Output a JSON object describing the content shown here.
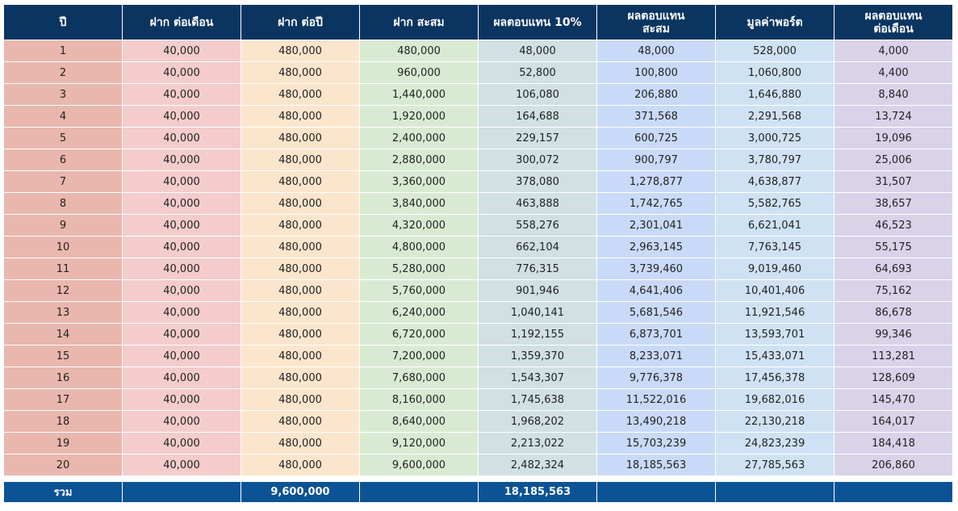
{
  "headers": [
    [
      "ปี"
    ],
    [
      "ฝาก ต่อเดือน"
    ],
    [
      "ฝาก ต่อปี"
    ],
    [
      "ฝาก สะสม"
    ],
    [
      "ผลตอบแทน 10%"
    ],
    [
      "ผลตอบแทน",
      "สะสม"
    ],
    [
      "มูลค่าพอร์ต"
    ],
    [
      "ผลตอบแทน",
      "ต่อเดือน"
    ]
  ],
  "rows": [
    [
      "1",
      "40,000",
      "480,000",
      "480,000",
      "48,000",
      "48,000",
      "528,000",
      "4,000"
    ],
    [
      "2",
      "40,000",
      "480,000",
      "960,000",
      "52,800",
      "100,800",
      "1,060,800",
      "4,400"
    ],
    [
      "3",
      "40,000",
      "480,000",
      "1,440,000",
      "106,080",
      "206,880",
      "1,646,880",
      "8,840"
    ],
    [
      "4",
      "40,000",
      "480,000",
      "1,920,000",
      "164,688",
      "371,568",
      "2,291,568",
      "13,724"
    ],
    [
      "5",
      "40,000",
      "480,000",
      "2,400,000",
      "229,157",
      "600,725",
      "3,000,725",
      "19,096"
    ],
    [
      "6",
      "40,000",
      "480,000",
      "2,880,000",
      "300,072",
      "900,797",
      "3,780,797",
      "25,006"
    ],
    [
      "7",
      "40,000",
      "480,000",
      "3,360,000",
      "378,080",
      "1,278,877",
      "4,638,877",
      "31,507"
    ],
    [
      "8",
      "40,000",
      "480,000",
      "3,840,000",
      "463,888",
      "1,742,765",
      "5,582,765",
      "38,657"
    ],
    [
      "9",
      "40,000",
      "480,000",
      "4,320,000",
      "558,276",
      "2,301,041",
      "6,621,041",
      "46,523"
    ],
    [
      "10",
      "40,000",
      "480,000",
      "4,800,000",
      "662,104",
      "2,963,145",
      "7,763,145",
      "55,175"
    ],
    [
      "11",
      "40,000",
      "480,000",
      "5,280,000",
      "776,315",
      "3,739,460",
      "9,019,460",
      "64,693"
    ],
    [
      "12",
      "40,000",
      "480,000",
      "5,760,000",
      "901,946",
      "4,641,406",
      "10,401,406",
      "75,162"
    ],
    [
      "13",
      "40,000",
      "480,000",
      "6,240,000",
      "1,040,141",
      "5,681,546",
      "11,921,546",
      "86,678"
    ],
    [
      "14",
      "40,000",
      "480,000",
      "6,720,000",
      "1,192,155",
      "6,873,701",
      "13,593,701",
      "99,346"
    ],
    [
      "15",
      "40,000",
      "480,000",
      "7,200,000",
      "1,359,370",
      "8,233,071",
      "15,433,071",
      "113,281"
    ],
    [
      "16",
      "40,000",
      "480,000",
      "7,680,000",
      "1,543,307",
      "9,776,378",
      "17,456,378",
      "128,609"
    ],
    [
      "17",
      "40,000",
      "480,000",
      "8,160,000",
      "1,745,638",
      "11,522,016",
      "19,682,016",
      "145,470"
    ],
    [
      "18",
      "40,000",
      "480,000",
      "8,640,000",
      "1,968,202",
      "13,490,218",
      "22,130,218",
      "164,017"
    ],
    [
      "19",
      "40,000",
      "480,000",
      "9,120,000",
      "2,213,022",
      "15,703,239",
      "24,823,239",
      "184,418"
    ],
    [
      "20",
      "40,000",
      "480,000",
      "9,600,000",
      "2,482,324",
      "18,185,563",
      "27,785,563",
      "206,860"
    ]
  ],
  "total": {
    "label": "รวม",
    "cells": [
      "",
      "9,600,000",
      "",
      "18,185,563",
      "",
      "",
      ""
    ]
  },
  "colors": {
    "header_bg": "#0b3561",
    "total_bg": "#0b5394",
    "column_bg": [
      "#e9b7ae",
      "#f4cccc",
      "#fce5cd",
      "#d9ead3",
      "#d0e0e3",
      "#c9daf8",
      "#cfe2f3",
      "#d9d2e9"
    ]
  }
}
